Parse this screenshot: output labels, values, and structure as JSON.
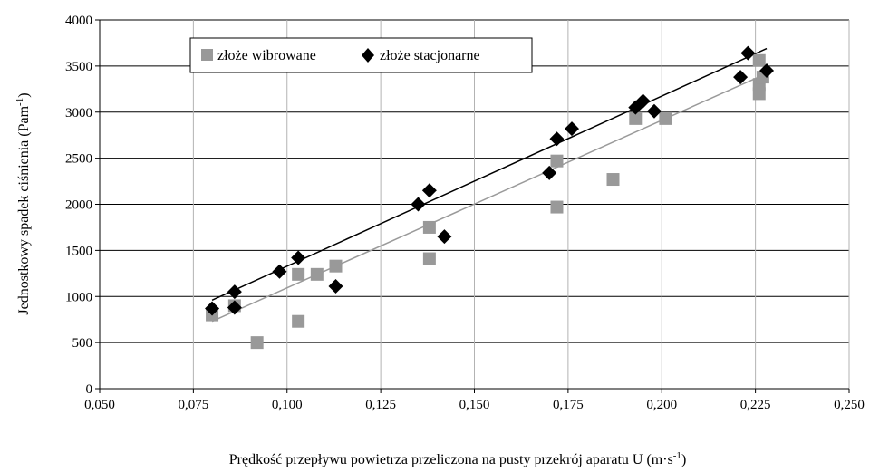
{
  "chart_data": {
    "type": "scatter",
    "xlabel": "Prędkość przepływu powietrza przeliczona na pusty przekrój aparatu U (m·s",
    "xlabel_sup": "-1",
    "xlabel_end": ")",
    "ylabel": "Jednostkowy spadek ciśnienia (Pam",
    "ylabel_sup": "-1",
    "ylabel_end": ")",
    "xlim": [
      0.05,
      0.25
    ],
    "ylim": [
      0,
      4000
    ],
    "x_ticks": [
      0.05,
      0.075,
      0.1,
      0.125,
      0.15,
      0.175,
      0.2,
      0.225,
      0.25
    ],
    "x_tick_labels": [
      "0,050",
      "0,075",
      "0,100",
      "0,125",
      "0,150",
      "0,175",
      "0,200",
      "0,225",
      "0,250"
    ],
    "y_ticks": [
      0,
      500,
      1000,
      1500,
      2000,
      2500,
      3000,
      3500,
      4000
    ],
    "y_tick_labels": [
      "0",
      "500",
      "1000",
      "1500",
      "2000",
      "2500",
      "3000",
      "3500",
      "4000"
    ],
    "grid": true,
    "legend_position": "top-left",
    "series": [
      {
        "name": "złoże wibrowane",
        "marker": "square",
        "color": "#999999",
        "trend": [
          [
            0.08,
            730
          ],
          [
            0.228,
            3420
          ]
        ],
        "points": [
          [
            0.08,
            800
          ],
          [
            0.086,
            900
          ],
          [
            0.092,
            500
          ],
          [
            0.103,
            730
          ],
          [
            0.103,
            1240
          ],
          [
            0.108,
            1240
          ],
          [
            0.113,
            1330
          ],
          [
            0.138,
            1750
          ],
          [
            0.138,
            1410
          ],
          [
            0.172,
            2470
          ],
          [
            0.172,
            1970
          ],
          [
            0.187,
            2270
          ],
          [
            0.193,
            2930
          ],
          [
            0.201,
            2930
          ],
          [
            0.226,
            3560
          ],
          [
            0.226,
            3300
          ],
          [
            0.226,
            3200
          ],
          [
            0.227,
            3380
          ]
        ]
      },
      {
        "name": "złoże stacjonarne",
        "marker": "diamond",
        "color": "#000000",
        "trend": [
          [
            0.08,
            960
          ],
          [
            0.228,
            3690
          ]
        ],
        "points": [
          [
            0.08,
            870
          ],
          [
            0.086,
            1050
          ],
          [
            0.086,
            880
          ],
          [
            0.098,
            1270
          ],
          [
            0.103,
            1420
          ],
          [
            0.113,
            1110
          ],
          [
            0.135,
            2000
          ],
          [
            0.138,
            2150
          ],
          [
            0.142,
            1650
          ],
          [
            0.17,
            2340
          ],
          [
            0.172,
            2710
          ],
          [
            0.176,
            2820
          ],
          [
            0.193,
            3050
          ],
          [
            0.195,
            3120
          ],
          [
            0.198,
            3010
          ],
          [
            0.221,
            3380
          ],
          [
            0.223,
            3640
          ],
          [
            0.228,
            3450
          ]
        ]
      }
    ]
  }
}
